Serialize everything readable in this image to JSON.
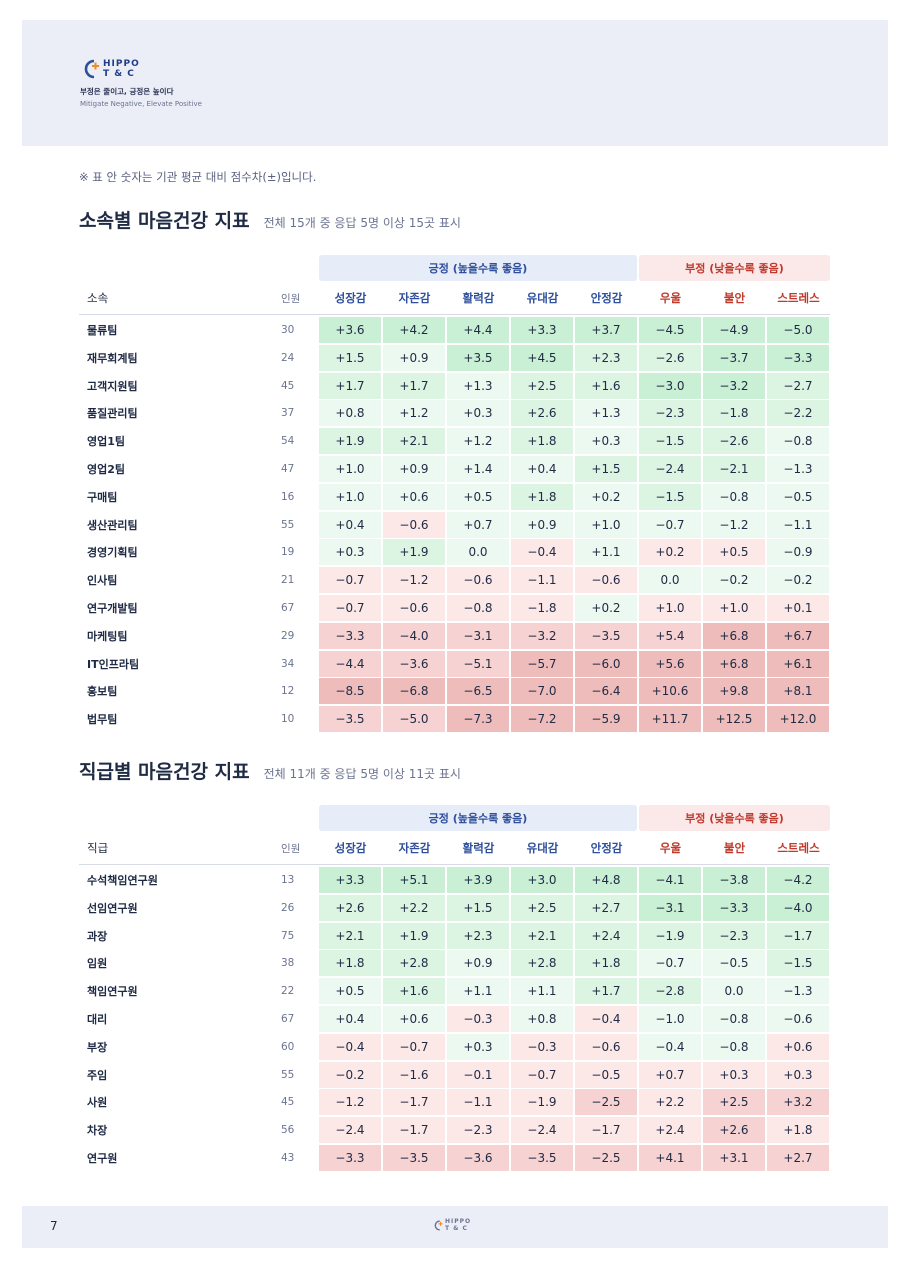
{
  "brand": {
    "logo_line1": "HIPPO",
    "logo_line2": "T & C",
    "tagline_ko": "부정은 줄이고, 긍정은 높이다",
    "tagline_en": "Mitigate Negative, Elevate Positive"
  },
  "note": "※ 표 안 숫자는 기관 평균 대비 점수차(±)입니다.",
  "colors": {
    "pos_strong": "#c9efd4",
    "pos_mid": "#dcf5e3",
    "pos_light": "#ecf9f0",
    "neg_light": "#fde8e8",
    "neg_mid": "#f6d2d2",
    "neg_strong": "#efbcbc",
    "accent_blue": "#2e4f9c",
    "accent_red": "#c0392b"
  },
  "dept": {
    "title": "소속별 마음건강 지표",
    "subtitle": "전체 15개 중 응답 5명 이상 15곳 표시",
    "group_pos": "긍정 (높을수록 좋음)",
    "group_neg": "부정 (낮을수록 좋음)",
    "col_name": "소속",
    "col_n": "인원",
    "metrics": [
      "성장감",
      "자존감",
      "활력감",
      "유대감",
      "안정감",
      "우울",
      "불안",
      "스트레스"
    ],
    "rows": [
      {
        "name": "물류팀",
        "n": "30",
        "v": [
          "+3.6",
          "+4.2",
          "+4.4",
          "+3.3",
          "+3.7",
          "−4.5",
          "−4.9",
          "−5.0"
        ]
      },
      {
        "name": "재무회계팀",
        "n": "24",
        "v": [
          "+1.5",
          "+0.9",
          "+3.5",
          "+4.5",
          "+2.3",
          "−2.6",
          "−3.7",
          "−3.3"
        ]
      },
      {
        "name": "고객지원팀",
        "n": "45",
        "v": [
          "+1.7",
          "+1.7",
          "+1.3",
          "+2.5",
          "+1.6",
          "−3.0",
          "−3.2",
          "−2.7"
        ]
      },
      {
        "name": "품질관리팀",
        "n": "37",
        "v": [
          "+0.8",
          "+1.2",
          "+0.3",
          "+2.6",
          "+1.3",
          "−2.3",
          "−1.8",
          "−2.2"
        ]
      },
      {
        "name": "영업1팀",
        "n": "54",
        "v": [
          "+1.9",
          "+2.1",
          "+1.2",
          "+1.8",
          "+0.3",
          "−1.5",
          "−2.6",
          "−0.8"
        ]
      },
      {
        "name": "영업2팀",
        "n": "47",
        "v": [
          "+1.0",
          "+0.9",
          "+1.4",
          "+0.4",
          "+1.5",
          "−2.4",
          "−2.1",
          "−1.3"
        ]
      },
      {
        "name": "구매팀",
        "n": "16",
        "v": [
          "+1.0",
          "+0.6",
          "+0.5",
          "+1.8",
          "+0.2",
          "−1.5",
          "−0.8",
          "−0.5"
        ]
      },
      {
        "name": "생산관리팀",
        "n": "55",
        "v": [
          "+0.4",
          "−0.6",
          "+0.7",
          "+0.9",
          "+1.0",
          "−0.7",
          "−1.2",
          "−1.1"
        ]
      },
      {
        "name": "경영기획팀",
        "n": "19",
        "v": [
          "+0.3",
          "+1.9",
          "0.0",
          "−0.4",
          "+1.1",
          "+0.2",
          "+0.5",
          "−0.9"
        ]
      },
      {
        "name": "인사팀",
        "n": "21",
        "v": [
          "−0.7",
          "−1.2",
          "−0.6",
          "−1.1",
          "−0.6",
          "0.0",
          "−0.2",
          "−0.2"
        ]
      },
      {
        "name": "연구개발팀",
        "n": "67",
        "v": [
          "−0.7",
          "−0.6",
          "−0.8",
          "−1.8",
          "+0.2",
          "+1.0",
          "+1.0",
          "+0.1"
        ]
      },
      {
        "name": "마케팅팀",
        "n": "29",
        "v": [
          "−3.3",
          "−4.0",
          "−3.1",
          "−3.2",
          "−3.5",
          "+5.4",
          "+6.8",
          "+6.7"
        ]
      },
      {
        "name": "IT인프라팀",
        "n": "34",
        "v": [
          "−4.4",
          "−3.6",
          "−5.1",
          "−5.7",
          "−6.0",
          "+5.6",
          "+6.8",
          "+6.1"
        ]
      },
      {
        "name": "홍보팀",
        "n": "12",
        "v": [
          "−8.5",
          "−6.8",
          "−6.5",
          "−7.0",
          "−6.4",
          "+10.6",
          "+9.8",
          "+8.1"
        ]
      },
      {
        "name": "법무팀",
        "n": "10",
        "v": [
          "−3.5",
          "−5.0",
          "−7.3",
          "−7.2",
          "−5.9",
          "+11.7",
          "+12.5",
          "+12.0"
        ]
      }
    ]
  },
  "rank": {
    "title": "직급별 마음건강 지표",
    "subtitle": "전체 11개 중 응답 5명 이상 11곳 표시",
    "group_pos": "긍정 (높을수록 좋음)",
    "group_neg": "부정 (낮을수록 좋음)",
    "col_name": "직급",
    "col_n": "인원",
    "metrics": [
      "성장감",
      "자존감",
      "활력감",
      "유대감",
      "안정감",
      "우울",
      "불안",
      "스트레스"
    ],
    "rows": [
      {
        "name": "수석책임연구원",
        "n": "13",
        "v": [
          "+3.3",
          "+5.1",
          "+3.9",
          "+3.0",
          "+4.8",
          "−4.1",
          "−3.8",
          "−4.2"
        ]
      },
      {
        "name": "선임연구원",
        "n": "26",
        "v": [
          "+2.6",
          "+2.2",
          "+1.5",
          "+2.5",
          "+2.7",
          "−3.1",
          "−3.3",
          "−4.0"
        ]
      },
      {
        "name": "과장",
        "n": "75",
        "v": [
          "+2.1",
          "+1.9",
          "+2.3",
          "+2.1",
          "+2.4",
          "−1.9",
          "−2.3",
          "−1.7"
        ]
      },
      {
        "name": "임원",
        "n": "38",
        "v": [
          "+1.8",
          "+2.8",
          "+0.9",
          "+2.8",
          "+1.8",
          "−0.7",
          "−0.5",
          "−1.5"
        ]
      },
      {
        "name": "책임연구원",
        "n": "22",
        "v": [
          "+0.5",
          "+1.6",
          "+1.1",
          "+1.1",
          "+1.7",
          "−2.8",
          "0.0",
          "−1.3"
        ]
      },
      {
        "name": "대리",
        "n": "67",
        "v": [
          "+0.4",
          "+0.6",
          "−0.3",
          "+0.8",
          "−0.4",
          "−1.0",
          "−0.8",
          "−0.6"
        ]
      },
      {
        "name": "부장",
        "n": "60",
        "v": [
          "−0.4",
          "−0.7",
          "+0.3",
          "−0.3",
          "−0.6",
          "−0.4",
          "−0.8",
          "+0.6"
        ]
      },
      {
        "name": "주임",
        "n": "55",
        "v": [
          "−0.2",
          "−1.6",
          "−0.1",
          "−0.7",
          "−0.5",
          "+0.7",
          "+0.3",
          "+0.3"
        ]
      },
      {
        "name": "사원",
        "n": "45",
        "v": [
          "−1.2",
          "−1.7",
          "−1.1",
          "−1.9",
          "−2.5",
          "+2.2",
          "+2.5",
          "+3.2"
        ]
      },
      {
        "name": "차장",
        "n": "56",
        "v": [
          "−2.4",
          "−1.7",
          "−2.3",
          "−2.4",
          "−1.7",
          "+2.4",
          "+2.6",
          "+1.8"
        ]
      },
      {
        "name": "연구원",
        "n": "43",
        "v": [
          "−3.3",
          "−3.5",
          "−3.6",
          "−3.5",
          "−2.5",
          "+4.1",
          "+3.1",
          "+2.7"
        ]
      }
    ]
  },
  "footer": {
    "page": "7",
    "logo_line1": "HIPPO",
    "logo_line2": "T & C"
  }
}
